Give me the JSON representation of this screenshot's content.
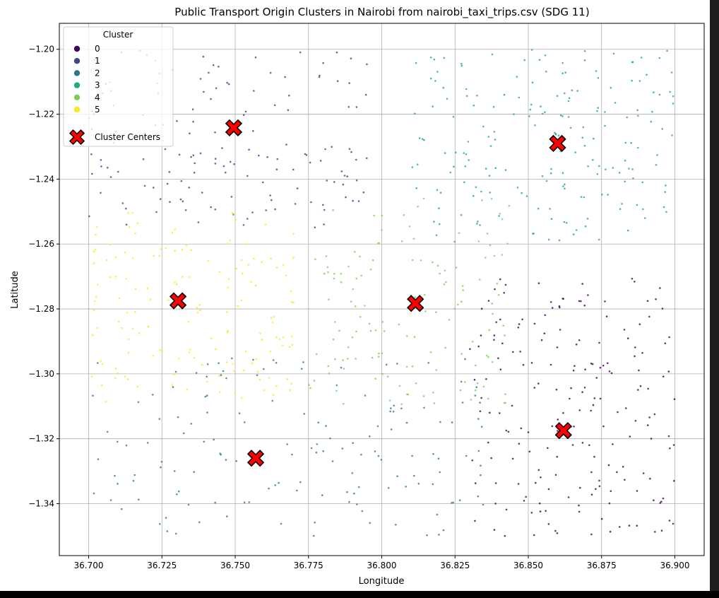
{
  "chart_data": {
    "type": "scatter",
    "title": "Public Transport Origin Clusters in Nairobi from nairobi_taxi_trips.csv (SDG 11)",
    "xlabel": "Longitude",
    "ylabel": "Latitude",
    "xlim": [
      36.69,
      36.91
    ],
    "ylim": [
      -1.356,
      -1.192
    ],
    "xticks": [
      36.7,
      36.725,
      36.75,
      36.775,
      36.8,
      36.825,
      36.85,
      36.875,
      36.9
    ],
    "xtick_labels": [
      "36.700",
      "36.725",
      "36.750",
      "36.775",
      "36.800",
      "36.825",
      "36.850",
      "36.875",
      "36.900"
    ],
    "yticks": [
      -1.2,
      -1.22,
      -1.24,
      -1.26,
      -1.28,
      -1.3,
      -1.32,
      -1.34
    ],
    "ytick_labels": [
      "−1.20",
      "−1.22",
      "−1.24",
      "−1.26",
      "−1.28",
      "−1.30",
      "−1.32",
      "−1.34"
    ],
    "grid": true,
    "legend": {
      "title": "Cluster",
      "placement": "top-left",
      "entries": [
        "0",
        "1",
        "2",
        "3",
        "4",
        "5",
        "Cluster Centers"
      ]
    },
    "colors": {
      "0": "#440154",
      "1": "#414487",
      "2": "#2a788e",
      "3": "#22a884",
      "4": "#7ad151",
      "5": "#fde725",
      "center": "#ff0000"
    },
    "clusters": [
      {
        "name": "0",
        "region": {
          "x": [
            36.83,
            36.9
          ],
          "y": [
            -1.35,
            -1.27
          ]
        },
        "count": 190
      },
      {
        "name": "1",
        "region": {
          "x": [
            36.7,
            36.795
          ],
          "y": [
            -1.255,
            -1.2
          ]
        },
        "count": 150
      },
      {
        "name": "2",
        "region": {
          "x": [
            36.7,
            36.835
          ],
          "y": [
            -1.35,
            -1.295
          ]
        },
        "count": 150
      },
      {
        "name": "3",
        "region": {
          "x": [
            36.81,
            36.9
          ],
          "y": [
            -1.26,
            -1.2
          ]
        },
        "count": 190
      },
      {
        "name": "4",
        "region": {
          "x": [
            36.775,
            36.845
          ],
          "y": [
            -1.31,
            -1.245
          ]
        },
        "count": 140
      },
      {
        "name": "5",
        "region": {
          "x": [
            36.7,
            36.77
          ],
          "y": [
            -1.31,
            -1.25
          ]
        },
        "count": 150
      }
    ],
    "centers": [
      {
        "cluster": "0",
        "x": 36.862,
        "y": -1.3175
      },
      {
        "cluster": "1",
        "x": 36.7495,
        "y": -1.2242
      },
      {
        "cluster": "2",
        "x": 36.757,
        "y": -1.326
      },
      {
        "cluster": "3",
        "x": 36.86,
        "y": -1.229
      },
      {
        "cluster": "4",
        "x": 36.8115,
        "y": -1.2783
      },
      {
        "cluster": "5",
        "x": 36.7305,
        "y": -1.2775
      }
    ]
  }
}
